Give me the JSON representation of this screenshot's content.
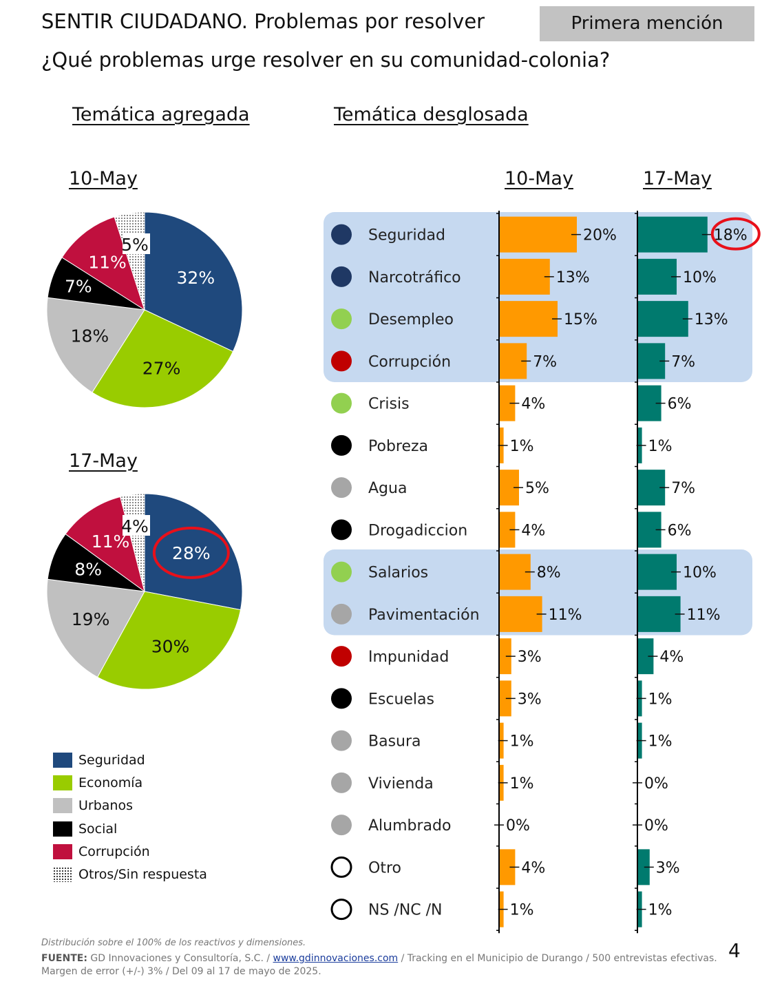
{
  "header": {
    "title": "SENTIR CIUDADANO. Problemas por resolver",
    "subtitle": "¿Qué problemas urge resolver en su comunidad-colonia?",
    "badge": "Primera mención"
  },
  "sections": {
    "aggregated": "Temática agregada",
    "breakdown": "Temática desglosada"
  },
  "legend": [
    {
      "label": "Seguridad",
      "color": "#1f497d"
    },
    {
      "label": "Economía",
      "color": "#99cc00"
    },
    {
      "label": "Urbanos",
      "color": "#c0c0c0"
    },
    {
      "label": "Social",
      "color": "#000000"
    },
    {
      "label": "Corrupción",
      "color": "#c0103e"
    },
    {
      "label": "Otros/Sin respuesta",
      "color": "dotted"
    }
  ],
  "chart_data": [
    {
      "type": "pie",
      "title": "10-May",
      "slices": [
        {
          "label": "Seguridad",
          "value": 32,
          "text": "32%",
          "color": "#1f497d"
        },
        {
          "label": "Economía",
          "value": 27,
          "text": "27%",
          "color": "#99cc00"
        },
        {
          "label": "Urbanos",
          "value": 18,
          "text": "18%",
          "color": "#c0c0c0"
        },
        {
          "label": "Social",
          "value": 7,
          "text": "7%",
          "color": "#000000"
        },
        {
          "label": "Corrupción",
          "value": 11,
          "text": "11%",
          "color": "#c0103e"
        },
        {
          "label": "Otros/Sin respuesta",
          "value": 5,
          "text": "5%",
          "color": "dotted"
        }
      ]
    },
    {
      "type": "pie",
      "title": "17-May",
      "highlight": "Seguridad",
      "slices": [
        {
          "label": "Seguridad",
          "value": 28,
          "text": "28%",
          "color": "#1f497d"
        },
        {
          "label": "Economía",
          "value": 30,
          "text": "30%",
          "color": "#99cc00"
        },
        {
          "label": "Urbanos",
          "value": 19,
          "text": "19%",
          "color": "#c0c0c0"
        },
        {
          "label": "Social",
          "value": 8,
          "text": "8%",
          "color": "#000000"
        },
        {
          "label": "Corrupción",
          "value": 11,
          "text": "11%",
          "color": "#c0103e"
        },
        {
          "label": "Otros/Sin respuesta",
          "value": 4,
          "text": "4%",
          "color": "dotted"
        }
      ]
    },
    {
      "type": "bar",
      "orientation": "horizontal",
      "columns": [
        "10-May",
        "17-May"
      ],
      "column_colors": [
        "#ff9900",
        "#007a6e"
      ],
      "highlight": {
        "series": "17-May",
        "category": "Seguridad"
      },
      "categories": [
        {
          "label": "Seguridad",
          "dot": "#1f3864",
          "values": [
            20,
            18
          ],
          "texts": [
            "20%",
            "18%"
          ],
          "band": true
        },
        {
          "label": "Narcotráfico",
          "dot": "#1f3864",
          "values": [
            13,
            10
          ],
          "texts": [
            "13%",
            "10%"
          ],
          "band": true
        },
        {
          "label": "Desempleo",
          "dot": "#92d050",
          "values": [
            15,
            13
          ],
          "texts": [
            "15%",
            "13%"
          ],
          "band": true
        },
        {
          "label": "Corrupción",
          "dot": "#c00000",
          "values": [
            7,
            7
          ],
          "texts": [
            "7%",
            "7%"
          ],
          "band": true
        },
        {
          "label": "Crisis",
          "dot": "#92d050",
          "values": [
            4,
            6
          ],
          "texts": [
            "4%",
            "6%"
          ],
          "band": false
        },
        {
          "label": "Pobreza",
          "dot": "#000000",
          "values": [
            1,
            1
          ],
          "texts": [
            "1%",
            "1%"
          ],
          "band": false
        },
        {
          "label": "Agua",
          "dot": "#a6a6a6",
          "values": [
            5,
            7
          ],
          "texts": [
            "5%",
            "7%"
          ],
          "band": false
        },
        {
          "label": "Drogadiccion",
          "dot": "#000000",
          "values": [
            4,
            6
          ],
          "texts": [
            "4%",
            "6%"
          ],
          "band": false
        },
        {
          "label": "Salarios",
          "dot": "#92d050",
          "values": [
            8,
            10
          ],
          "texts": [
            "8%",
            "10%"
          ],
          "band": true
        },
        {
          "label": "Pavimentación",
          "dot": "#a6a6a6",
          "values": [
            11,
            11
          ],
          "texts": [
            "11%",
            "11%"
          ],
          "band": true
        },
        {
          "label": "Impunidad",
          "dot": "#c00000",
          "values": [
            3,
            4
          ],
          "texts": [
            "3%",
            "4%"
          ],
          "band": false
        },
        {
          "label": "Escuelas",
          "dot": "#000000",
          "values": [
            3,
            1
          ],
          "texts": [
            "3%",
            "1%"
          ],
          "band": false
        },
        {
          "label": "Basura",
          "dot": "#a6a6a6",
          "values": [
            1,
            1
          ],
          "texts": [
            "1%",
            "1%"
          ],
          "band": false
        },
        {
          "label": "Vivienda",
          "dot": "#a6a6a6",
          "values": [
            1,
            0
          ],
          "texts": [
            "1%",
            "0%"
          ],
          "band": false
        },
        {
          "label": "Alumbrado",
          "dot": "#a6a6a6",
          "values": [
            0,
            0
          ],
          "texts": [
            "0%",
            "0%"
          ],
          "band": false
        },
        {
          "label": "Otro",
          "dot": "outline",
          "values": [
            4,
            3
          ],
          "texts": [
            "4%",
            "3%"
          ],
          "band": false
        },
        {
          "label": "NS /NC /N",
          "dot": "outline",
          "values": [
            1,
            1
          ],
          "texts": [
            "1%",
            "1%"
          ],
          "band": false
        }
      ]
    }
  ],
  "footer": {
    "note": "Distribución sobre el 100% de los reactivos y dimensiones.",
    "source_label": "FUENTE:",
    "source_org": " GD Innovaciones y Consultoría, S.C. / ",
    "source_link": "www.gdinnovaciones.com",
    "source_rest": " / Tracking en el Municipio de Durango / 500 entrevistas efectivas. Margen de error (+/-) 3% / Del 09 al 17 de mayo de 2025.",
    "page_number": "4"
  }
}
